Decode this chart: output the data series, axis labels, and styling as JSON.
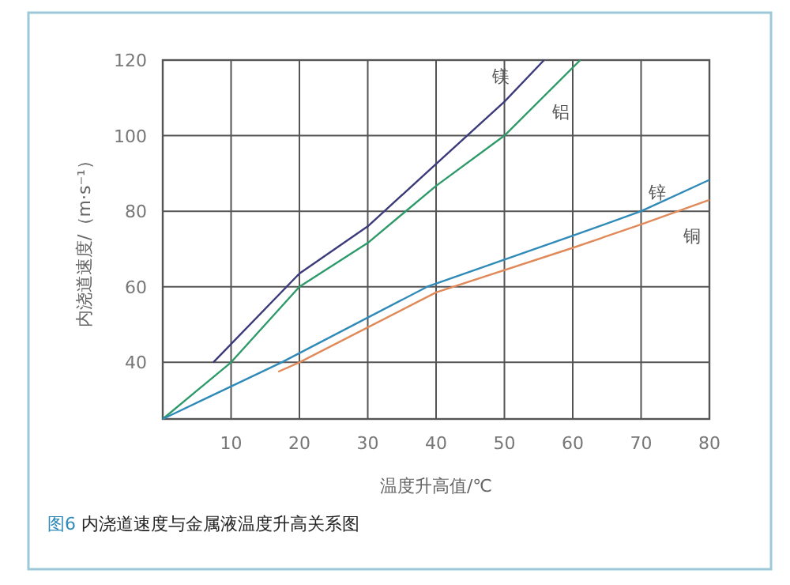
{
  "chart_data": {
    "type": "line",
    "xlabel": "温度升高值/℃",
    "ylabel": "内浇道速度/（m·s⁻¹）",
    "annotations": [
      "图6 内浇道速度与金属液温度升高关系图"
    ],
    "xlim": [
      0,
      80
    ],
    "xticks": [
      10,
      20,
      30,
      40,
      50,
      60,
      70,
      80
    ],
    "ylim": [
      25,
      120
    ],
    "yticks": [
      40,
      60,
      80,
      100,
      120
    ],
    "grid": true,
    "marker": "none",
    "line_style": "solid",
    "series": [
      {
        "name": "镁",
        "color": "#3b3a7a",
        "x": [
          7.4,
          20,
          30,
          40,
          50,
          55.8
        ],
        "values": [
          40,
          63.5,
          76,
          92.5,
          109,
          120
        ]
      },
      {
        "name": "铝",
        "color": "#2e9a6a",
        "x": [
          0,
          10,
          20,
          30,
          40,
          50,
          61.1
        ],
        "values": [
          25,
          40,
          60,
          71.6,
          86.7,
          100,
          120
        ]
      },
      {
        "name": "锌",
        "color": "#2f8ab8",
        "x": [
          0,
          17.4,
          38.7,
          60,
          70,
          80
        ],
        "values": [
          25,
          40,
          60,
          73.5,
          80,
          88.3
        ]
      },
      {
        "name": "铜",
        "color": "#e08a5a",
        "x": [
          16.9,
          20,
          40,
          60,
          70,
          80
        ],
        "values": [
          37.5,
          40,
          58.5,
          70.3,
          76.5,
          83
        ]
      }
    ]
  }
}
